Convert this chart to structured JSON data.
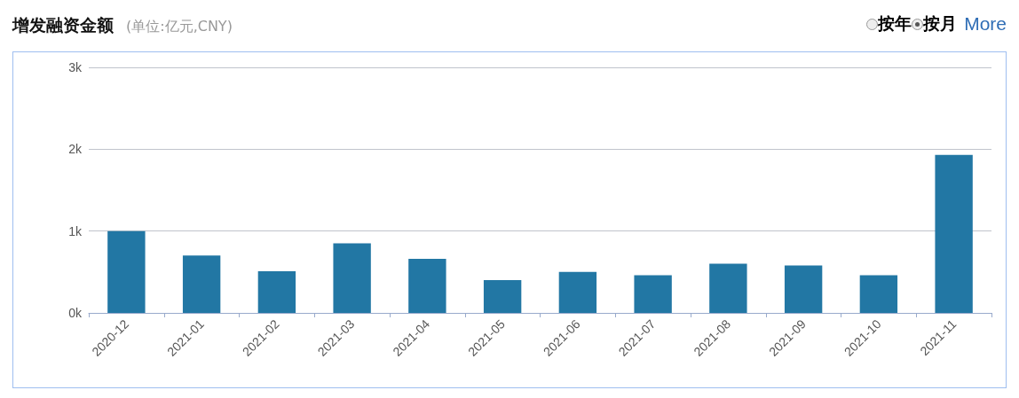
{
  "chart_data": {
    "type": "bar",
    "title": "增发融资金额",
    "subtitle": "(单位:亿元,CNY)",
    "annotations": [
      "按年",
      "按月",
      "More"
    ],
    "categories": [
      "2020-12",
      "2021-01",
      "2021-02",
      "2021-03",
      "2021-04",
      "2021-05",
      "2021-06",
      "2021-07",
      "2021-08",
      "2021-09",
      "2021-10",
      "2021-11"
    ],
    "values": [
      1000,
      700,
      510,
      850,
      660,
      400,
      500,
      460,
      600,
      580,
      460,
      1930
    ],
    "color": "#2277a4",
    "ylim": [
      0,
      3000
    ],
    "yticks": [
      {
        "value": 0,
        "label": "0k"
      },
      {
        "value": 1000,
        "label": "1k"
      },
      {
        "value": 2000,
        "label": "2k"
      },
      {
        "value": 3000,
        "label": "3k"
      }
    ],
    "grid": "y"
  }
}
